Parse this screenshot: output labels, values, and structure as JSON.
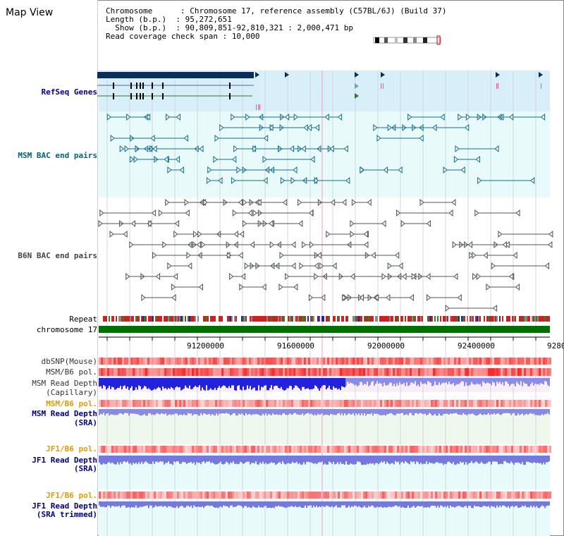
{
  "title": "Map View",
  "info": {
    "chromosome_label": "Chromosome      : ",
    "chromosome_value": "Chromosome 17, reference assembly (C57BL/6J) (Build 37)",
    "length_label": "Length (b.p.)  : ",
    "length_value": "95,272,651",
    "show_label": "  Show (b.p.)  : ",
    "show_value": "90,809,851-92,810,321 : 2,000,471 bp",
    "coverage_label": "Read coverage check span : ",
    "coverage_value": "10,000"
  },
  "labels": {
    "refseq": "RefSeq Genes",
    "msm_bac": "MSM BAC end pairs",
    "b6n_bac": "B6N BAC end pairs",
    "repeat": "Repeat",
    "chromosome": "chromosome 17",
    "dbsnp": "dbSNP(Mouse)",
    "msm_b6_pol": "MSM/B6 pol.",
    "msm_depth_cap_1": "MSM Read Depth",
    "msm_depth_cap_2": "(Capillary)",
    "msm_b6_pol2": "MSM/B6 pol.",
    "msm_depth_sra_1": "MSM Read Depth",
    "msm_depth_sra_2": "(SRA)",
    "jf1_pol": "JF1/B6 pol.",
    "jf1_depth_sra_1": "JF1 Read Depth",
    "jf1_depth_sra_2": "(SRA)",
    "jf1_pol2": "JF1/B6 pol.",
    "jf1_depth_trim_1": "JF1 Read Depth",
    "jf1_depth_trim_2": "(SRA trimmed)"
  },
  "axis": {
    "ticks": [
      "91200000",
      "91600000",
      "92000000",
      "92400000",
      "9280"
    ]
  },
  "colors": {
    "refseq_bg": "#d8eef8",
    "bac_bg": "#e8fafa",
    "bac_msm": "#1a6e8a",
    "bac_b6n": "#555555",
    "chrom": "#007000",
    "pol_red": "#ee3333",
    "depth_blue": "#3333ee",
    "depth_bg_pink": "#f8eef8",
    "depth_bg_green": "#eef8ee",
    "label_blue": "#00008b",
    "label_orange": "#e69a00",
    "label_teal": "#00607a"
  }
}
